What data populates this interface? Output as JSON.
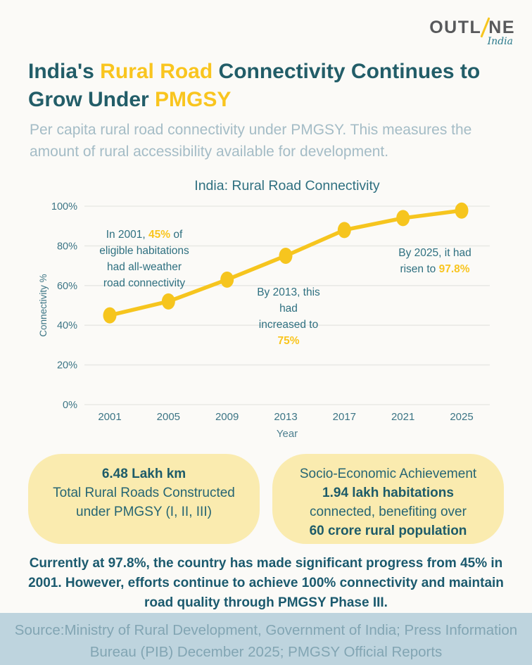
{
  "logo": {
    "part1": "OUTL",
    "part2": "NE",
    "subtitle": "India"
  },
  "title": {
    "seg1": "India's ",
    "seg2": "Rural Road",
    "seg3": " Connectivity Continues to Grow Under ",
    "seg4": "PMGSY"
  },
  "subtitle": "Per capita rural road connectivity under PMGSY. This measures the amount of rural accessibility available for development.",
  "chart_data": {
    "type": "line",
    "title": "India: Rural Road Connectivity",
    "xlabel": "Year",
    "ylabel": "Connectivity %",
    "categories": [
      "2001",
      "2005",
      "2009",
      "2013",
      "2017",
      "2021",
      "2025"
    ],
    "values": [
      45,
      52,
      63,
      75,
      88,
      94,
      97.8
    ],
    "ylim": [
      0,
      100
    ],
    "yticks": [
      {
        "v": 0,
        "label": "0%"
      },
      {
        "v": 20,
        "label": "20%"
      },
      {
        "v": 40,
        "label": "40%"
      },
      {
        "v": 60,
        "label": "60%"
      },
      {
        "v": 80,
        "label": "80%"
      },
      {
        "v": 100,
        "label": "100%"
      }
    ],
    "grid": "horizontal",
    "legend": "none",
    "line_color": "#F6C51E",
    "marker_color": "#F6C51E",
    "annotations": [
      {
        "lines": [
          [
            {
              "t": "In 2001, "
            },
            {
              "t": "45%",
              "hl": true
            },
            {
              "t": " of"
            }
          ],
          [
            {
              "t": "eligible habitations"
            }
          ],
          [
            {
              "t": "had all-weather"
            }
          ],
          [
            {
              "t": "road connectivity"
            }
          ]
        ]
      },
      {
        "lines": [
          [
            {
              "t": "By 2013, this"
            }
          ],
          [
            {
              "t": "had"
            }
          ],
          [
            {
              "t": "increased to"
            }
          ],
          [
            {
              "t": "75%",
              "hl": true
            }
          ]
        ]
      },
      {
        "lines": [
          [
            {
              "t": "By 2025, it had"
            }
          ],
          [
            {
              "t": "risen to "
            },
            {
              "t": "97.8%",
              "hl": true
            }
          ]
        ]
      }
    ]
  },
  "cards": [
    {
      "headline": "6.48 Lakh km",
      "body": "Total Rural Roads Constructed under PMGSY (I, II, III)"
    },
    {
      "line1": "Socio-Economic Achievement",
      "line2": "1.94 lakh habitations",
      "line3": "connected, benefiting over",
      "line4": "60 crore rural population"
    }
  ],
  "summary": "Currently at 97.8%, the country has made significant progress from 45% in 2001. However, efforts continue to achieve 100% connectivity and maintain road quality through PMGSY Phase III.",
  "footer": "Source:Ministry of Rural Development, Government of India; Press Information Bureau (PIB) December 2025; PMGSY Official Reports",
  "colors": {
    "accent_yellow": "#F9C51F",
    "teal_dark": "#225D68",
    "teal_mid": "#2F7080",
    "card_bg": "#FAEBAF",
    "footer_bg": "#BED4DE",
    "page_bg": "#FBFAF7"
  }
}
